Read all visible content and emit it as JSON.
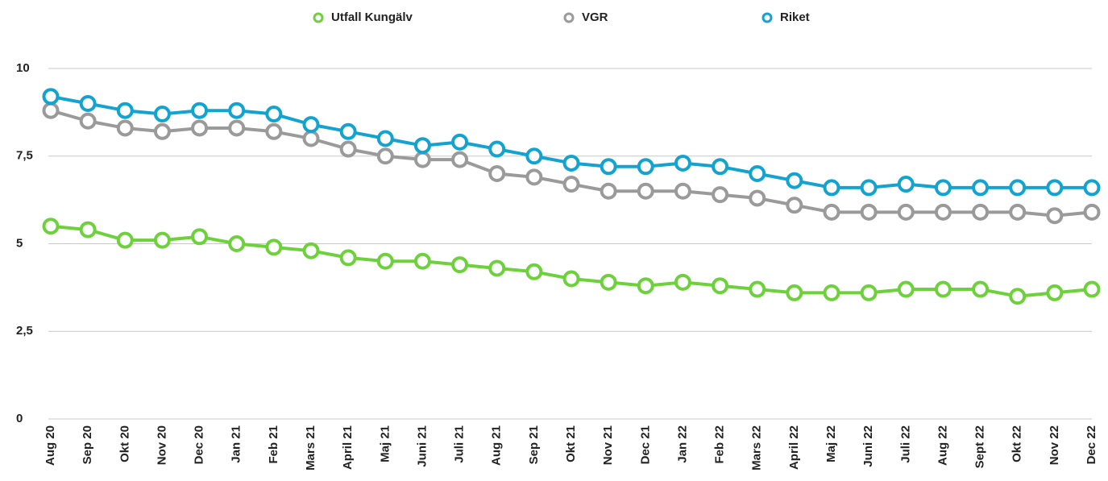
{
  "chart_data": {
    "type": "line",
    "categories": [
      "Aug 20",
      "Sep 20",
      "Okt 20",
      "Nov 20",
      "Dec 20",
      "Jan 21",
      "Feb 21",
      "Mars 21",
      "April 21",
      "Maj 21",
      "Juni 21",
      "Juli 21",
      "Aug 21",
      "Sep 21",
      "Okt 21",
      "Nov 21",
      "Dec 21",
      "Jan 22",
      "Feb 22",
      "Mars 22",
      "April 22",
      "Maj 22",
      "Juni 22",
      "Juli 22",
      "Aug 22",
      "Sept 22",
      "Okt 22",
      "Nov 22",
      "Dec 22"
    ],
    "series": [
      {
        "name": "Utfall Kungälv",
        "color": "#6dd13b",
        "values": [
          5.5,
          5.4,
          5.1,
          5.1,
          5.2,
          5.0,
          4.9,
          4.8,
          4.6,
          4.5,
          4.5,
          4.4,
          4.3,
          4.2,
          4.0,
          3.9,
          3.8,
          3.9,
          3.8,
          3.7,
          3.6,
          3.6,
          3.6,
          3.7,
          3.7,
          3.7,
          3.5,
          3.6,
          3.7
        ]
      },
      {
        "name": "VGR",
        "color": "#9a9a9a",
        "values": [
          8.8,
          8.5,
          8.3,
          8.2,
          8.3,
          8.3,
          8.2,
          8.0,
          7.7,
          7.5,
          7.4,
          7.4,
          7.0,
          6.9,
          6.7,
          6.5,
          6.5,
          6.5,
          6.4,
          6.3,
          6.1,
          5.9,
          5.9,
          5.9,
          5.9,
          5.9,
          5.9,
          5.8,
          5.9
        ]
      },
      {
        "name": "Riket",
        "color": "#12a3d0",
        "values": [
          9.2,
          9.0,
          8.8,
          8.7,
          8.8,
          8.8,
          8.7,
          8.4,
          8.2,
          8.0,
          7.8,
          7.9,
          7.7,
          7.5,
          7.3,
          7.2,
          7.2,
          7.3,
          7.2,
          7.0,
          6.8,
          6.6,
          6.6,
          6.7,
          6.6,
          6.6,
          6.6,
          6.6,
          6.6
        ]
      }
    ],
    "ylim": [
      0,
      10
    ],
    "yticks": [
      0,
      {
        "value": 2.5,
        "label": "2,5"
      },
      5,
      {
        "value": 7.5,
        "label": "7,5"
      },
      10
    ],
    "grid": true,
    "legend": "top"
  }
}
